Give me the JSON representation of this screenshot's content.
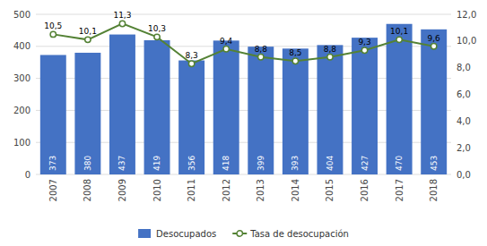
{
  "chart_data": {
    "type": "bar",
    "categories": [
      "2007",
      "2008",
      "2009",
      "2010",
      "2011",
      "2012",
      "2013",
      "2014",
      "2015",
      "2016",
      "2017",
      "2018"
    ],
    "series": [
      {
        "name": "Desocupados",
        "type": "bar",
        "color": "#4472C4",
        "values": [
          373,
          380,
          437,
          419,
          356,
          418,
          399,
          393,
          404,
          427,
          470,
          453
        ],
        "data_labels": true
      },
      {
        "name": "Tasa de desocupación",
        "type": "line",
        "axis": "y2",
        "color": "#548235",
        "marker": "circle",
        "values": [
          10.5,
          10.1,
          11.3,
          10.3,
          8.3,
          9.4,
          8.8,
          8.5,
          8.8,
          9.3,
          10.1,
          9.6
        ],
        "value_labels": [
          "10,5",
          "10,1",
          "11,3",
          "10,3",
          "8,3",
          "9,4",
          "8,8",
          "8,5",
          "8,8",
          "9,3",
          "10,1",
          "9,6"
        ],
        "data_labels": true
      }
    ],
    "ylim": [
      0,
      500
    ],
    "yticks": [
      0,
      100,
      200,
      300,
      400,
      500
    ],
    "y2lim": [
      0,
      12
    ],
    "y2ticks": [
      {
        "value": 0.0,
        "label": "0,0"
      },
      {
        "value": 2.0,
        "label": "2,0"
      },
      {
        "value": 4.0,
        "label": "4,0"
      },
      {
        "value": 6.0,
        "label": "6,0"
      },
      {
        "value": 8.0,
        "label": "8,0"
      },
      {
        "value": 10.0,
        "label": "10,0"
      },
      {
        "value": 12.0,
        "label": "12,0"
      }
    ],
    "grid": true,
    "legend": "bottom"
  }
}
